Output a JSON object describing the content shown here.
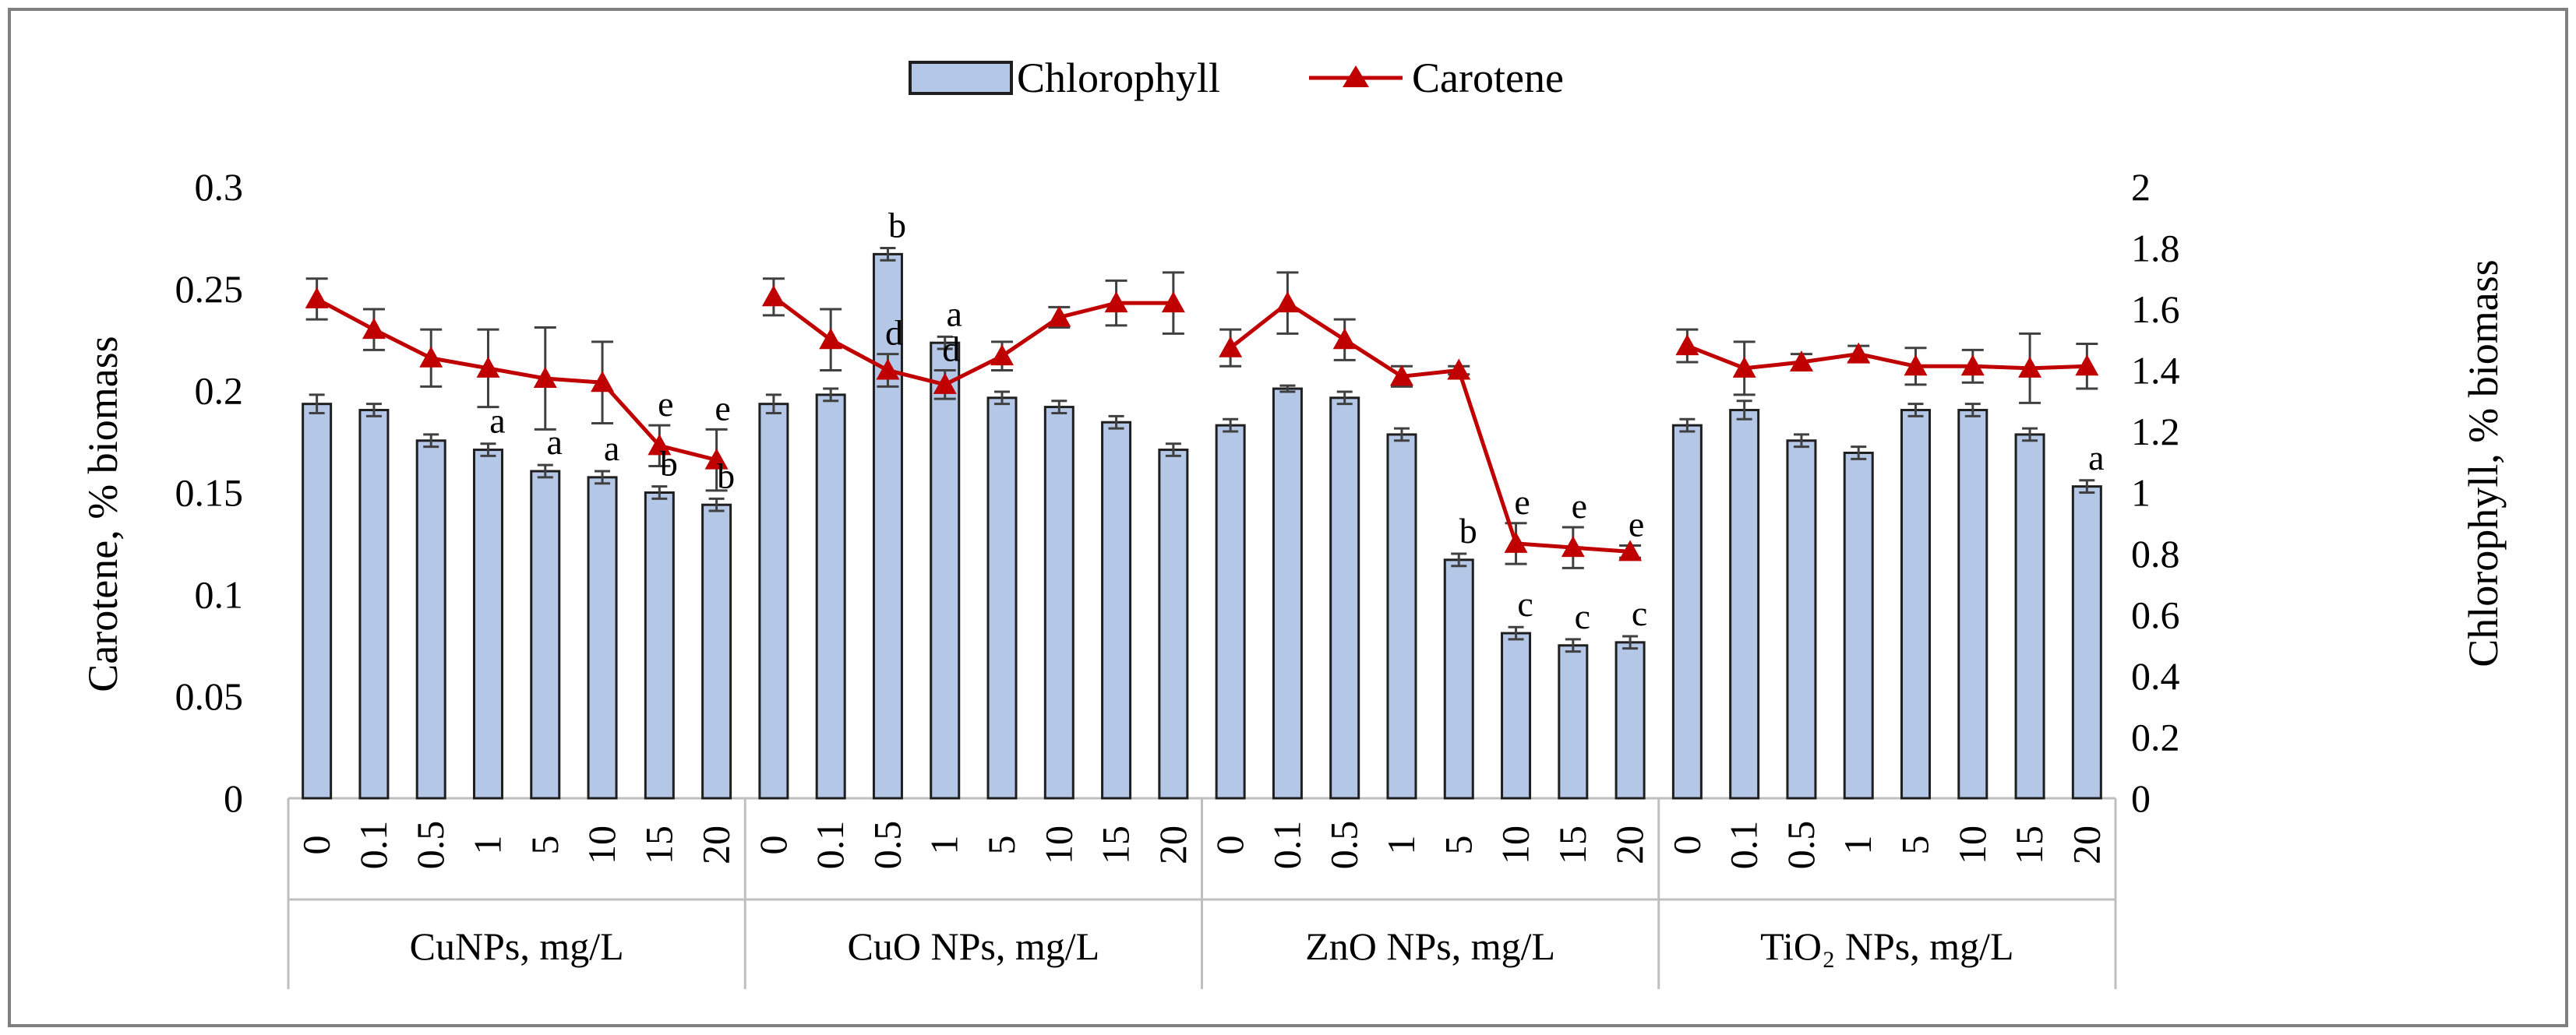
{
  "chart_data": {
    "type": "bar+line",
    "legend": [
      "Chlorophyll",
      "Carotene"
    ],
    "legend_position": "top-center",
    "left_axis": {
      "label": "Carotene, % biomass",
      "ticks": [
        "0",
        "0.05",
        "0.1",
        "0.15",
        "0.2",
        "0.25",
        "0.3"
      ],
      "ylim": [
        0,
        0.3
      ]
    },
    "right_axis": {
      "label": "Chlorophyll, % biomass",
      "ticks": [
        "0",
        "0.2",
        "0.4",
        "0.6",
        "0.8",
        "1",
        "1.2",
        "1.4",
        "1.6",
        "1.8",
        "2"
      ],
      "ylim": [
        0,
        2
      ]
    },
    "concentrations": [
      "0",
      "0.1",
      "0.5",
      "1",
      "5",
      "10",
      "15",
      "20"
    ],
    "colors": {
      "bar_fill": "#b4c7e7",
      "bar_stroke": "#1f1f1f",
      "line": "#c00000",
      "frame": "#7f7f7f",
      "axis": "#bfbfbf"
    },
    "groups": [
      {
        "name": "CuNPs, mg/L",
        "chlorophyll": [
          1.29,
          1.27,
          1.17,
          1.14,
          1.07,
          1.05,
          1.0,
          0.96
        ],
        "chlorophyll_err": [
          0.03,
          0.02,
          0.02,
          0.02,
          0.02,
          0.02,
          0.02,
          0.02
        ],
        "chlorophyll_labels": [
          "",
          "",
          "",
          "a",
          "a",
          "a",
          "b",
          "b"
        ],
        "carotene": [
          0.245,
          0.23,
          0.216,
          0.211,
          0.206,
          0.204,
          0.173,
          0.166
        ],
        "carotene_err": [
          0.01,
          0.01,
          0.014,
          0.019,
          0.025,
          0.02,
          0.01,
          0.015
        ],
        "carotene_labels": [
          "",
          "",
          "",
          "",
          "",
          "",
          "e",
          "e"
        ]
      },
      {
        "name": "CuO NPs, mg/L",
        "chlorophyll": [
          1.29,
          1.32,
          1.78,
          1.49,
          1.31,
          1.28,
          1.23,
          1.14
        ],
        "chlorophyll_err": [
          0.03,
          0.02,
          0.02,
          0.02,
          0.02,
          0.02,
          0.02,
          0.02
        ],
        "chlorophyll_labels": [
          "",
          "",
          "b",
          "a",
          "",
          "",
          "",
          ""
        ],
        "carotene": [
          0.246,
          0.225,
          0.21,
          0.203,
          0.217,
          0.236,
          0.243,
          0.243
        ],
        "carotene_err": [
          0.009,
          0.015,
          0.008,
          0.007,
          0.007,
          0.005,
          0.011,
          0.015
        ],
        "carotene_labels": [
          "",
          "",
          "d",
          "d",
          "",
          "",
          "",
          ""
        ]
      },
      {
        "name": "ZnO NPs, mg/L",
        "chlorophyll": [
          1.22,
          1.34,
          1.31,
          1.19,
          0.78,
          0.54,
          0.5,
          0.51
        ],
        "chlorophyll_err": [
          0.02,
          0.01,
          0.02,
          0.02,
          0.02,
          0.02,
          0.02,
          0.02
        ],
        "chlorophyll_labels": [
          "",
          "",
          "",
          "",
          "b",
          "c",
          "c",
          "c"
        ],
        "carotene": [
          0.221,
          0.243,
          0.225,
          0.207,
          0.21,
          0.125,
          0.123,
          0.121
        ],
        "carotene_err": [
          0.009,
          0.015,
          0.01,
          0.005,
          0.002,
          0.01,
          0.01,
          0.003
        ],
        "carotene_labels": [
          "",
          "",
          "",
          "",
          "",
          "e",
          "e",
          "e"
        ]
      },
      {
        "name": "TiO₂ NPs, mg/L",
        "chlorophyll": [
          1.22,
          1.27,
          1.17,
          1.13,
          1.27,
          1.27,
          1.19,
          1.02
        ],
        "chlorophyll_err": [
          0.02,
          0.03,
          0.02,
          0.02,
          0.02,
          0.02,
          0.02,
          0.02
        ],
        "chlorophyll_labels": [
          "",
          "",
          "",
          "",
          "",
          "",
          "",
          "a"
        ],
        "carotene": [
          0.222,
          0.211,
          0.214,
          0.218,
          0.212,
          0.212,
          0.211,
          0.212
        ],
        "carotene_err": [
          0.008,
          0.013,
          0.004,
          0.004,
          0.009,
          0.008,
          0.017,
          0.011
        ],
        "carotene_labels": [
          "",
          "",
          "",
          "",
          "",
          "",
          "",
          ""
        ]
      }
    ]
  }
}
